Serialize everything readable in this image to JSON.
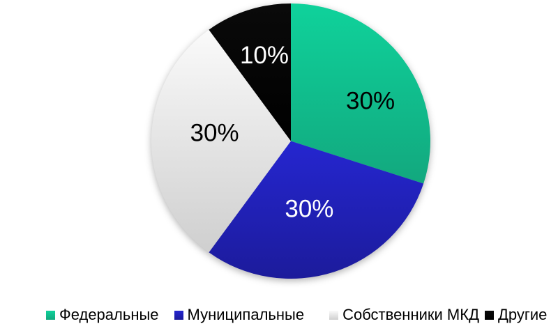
{
  "chart_data": {
    "type": "pie",
    "title": "",
    "categories": [
      "Федеральные",
      "Муниципальные",
      "Собственники МКД",
      "Другие"
    ],
    "values": [
      30,
      30,
      30,
      10
    ],
    "unit": "%",
    "data_labels": [
      "30%",
      "30%",
      "30%",
      "10%"
    ],
    "data_label_colors": [
      "#000000",
      "#FFFFFF",
      "#000000",
      "#FFFFFF"
    ],
    "slice_colors": [
      {
        "top": "#0FD29B",
        "bottom": "#12A87E"
      },
      {
        "top": "#2526D0",
        "bottom": "#1C1B9B"
      },
      {
        "top": "#FAFAFA",
        "bottom": "#CFCFCF"
      },
      {
        "top": "#0A0A0A",
        "bottom": "#000000"
      }
    ],
    "start_angle_deg": 0,
    "direction": "clockwise",
    "legend_position": "bottom",
    "background": "#FFFFFF"
  }
}
